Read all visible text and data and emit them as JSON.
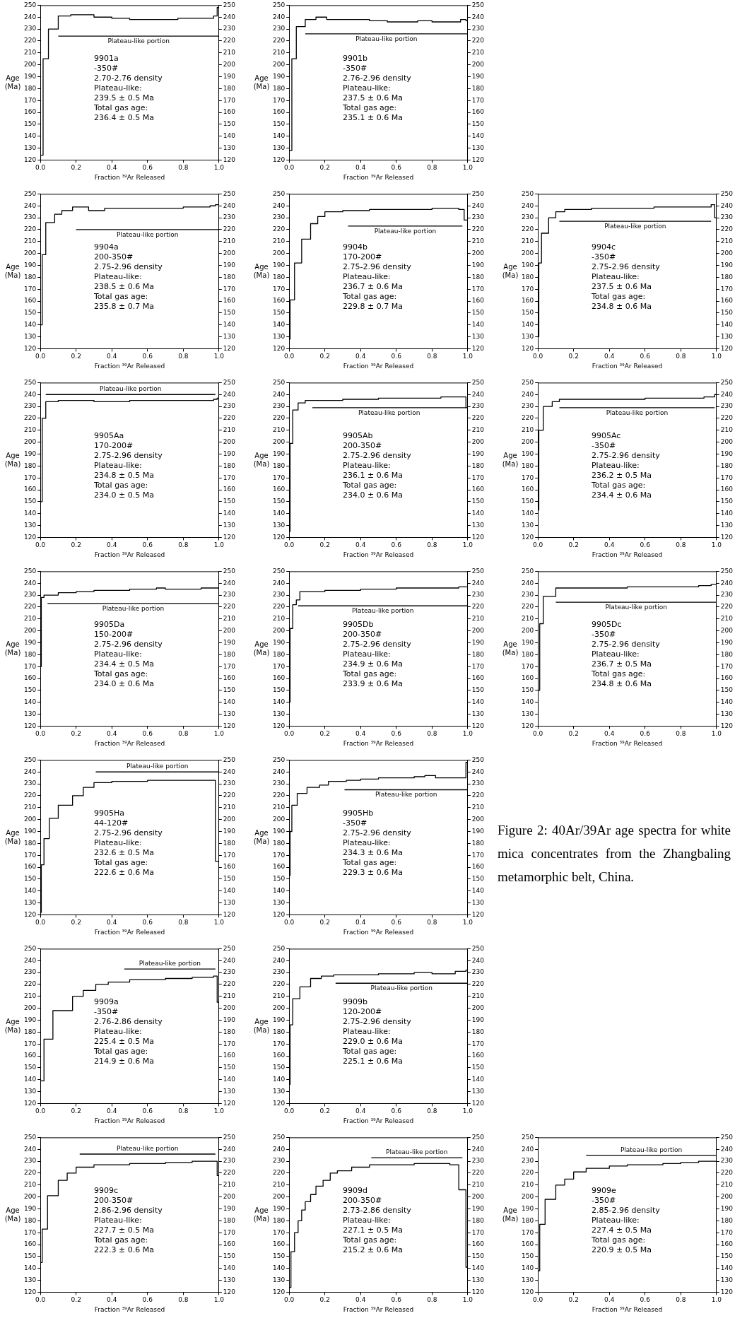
{
  "chart_data": [
    {
      "type": "step",
      "xlabel": "Fraction ³⁹Ar Released",
      "ylabel": "Age (Ma)",
      "xlim": [
        0,
        1
      ],
      "xticks": [
        {
          "value": 0,
          "label": "0.0"
        },
        {
          "value": 0.2,
          "label": "0.2"
        },
        {
          "value": 0.4,
          "label": "0.4"
        },
        {
          "value": 0.6,
          "label": "0.6"
        },
        {
          "value": 0.8,
          "label": "0.8"
        },
        {
          "value": 1,
          "label": "1.0"
        }
      ],
      "ylim": [
        120,
        250
      ],
      "yticks": [
        120,
        130,
        140,
        150,
        160,
        170,
        180,
        190,
        200,
        210,
        220,
        230,
        240,
        250
      ],
      "y2lim": [
        120,
        250
      ],
      "y2ticks": [
        120,
        130,
        140,
        150,
        160,
        170,
        180,
        190,
        200,
        210,
        220,
        230,
        240,
        250
      ],
      "marker": "none",
      "annotations": [
        "9901a",
        "-350#",
        "2.70-2.76 density",
        "Plateau-like:",
        "239.5 ± 0.5 Ma",
        "Total gas age:",
        "236.4 ± 0.5 Ma"
      ],
      "series": [
        {
          "type": "step",
          "color": "#000000",
          "x": [
            0,
            0.015,
            0.045,
            0.1,
            0.17,
            0.3,
            0.4,
            0.5,
            0.77,
            0.97,
            0.99,
            1.0
          ],
          "values": [
            124,
            205,
            230,
            241,
            242,
            240,
            239,
            238,
            239,
            241,
            248,
            248
          ]
        },
        {
          "type": "line",
          "name": "Plateau-like portion",
          "color": "#000000",
          "x": [
            0.1,
            1.0
          ],
          "values": [
            224,
            224
          ]
        }
      ]
    },
    {
      "type": "step",
      "xlabel": "Fraction ³⁹Ar Released",
      "ylabel": "Age (Ma)",
      "xlim": [
        0,
        1
      ],
      "xticks": [
        {
          "value": 0,
          "label": "0.0"
        },
        {
          "value": 0.2,
          "label": "0.2"
        },
        {
          "value": 0.4,
          "label": "0.4"
        },
        {
          "value": 0.6,
          "label": "0.6"
        },
        {
          "value": 0.8,
          "label": "0.8"
        },
        {
          "value": 1,
          "label": "1.0"
        }
      ],
      "ylim": [
        120,
        250
      ],
      "yticks": [
        120,
        130,
        140,
        150,
        160,
        170,
        180,
        190,
        200,
        210,
        220,
        230,
        240,
        250
      ],
      "y2lim": [
        120,
        250
      ],
      "y2ticks": [
        120,
        130,
        140,
        150,
        160,
        170,
        180,
        190,
        200,
        210,
        220,
        230,
        240,
        250
      ],
      "marker": "none",
      "annotations": [
        "9901b",
        "-350#",
        "2.76-2.96 density",
        "Plateau-like:",
        "237.5 ± 0.6 Ma",
        "Total gas age:",
        "235.1 ± 0.6 Ma"
      ],
      "series": [
        {
          "type": "step",
          "color": "#000000",
          "x": [
            0,
            0.015,
            0.04,
            0.09,
            0.15,
            0.21,
            0.45,
            0.55,
            0.72,
            0.8,
            0.96,
            0.99,
            1.0
          ],
          "values": [
            128,
            205,
            232,
            238,
            240,
            238,
            237,
            236,
            237,
            236,
            238,
            237,
            237
          ]
        },
        {
          "type": "line",
          "name": "Plateau-like portion",
          "color": "#000000",
          "x": [
            0.09,
            1.0
          ],
          "values": [
            226,
            226
          ]
        }
      ]
    },
    {
      "type": "step",
      "xlabel": "Fraction ³⁹Ar Released",
      "ylabel": "Age (Ma)",
      "xlim": [
        0,
        1
      ],
      "xticks": [
        {
          "value": 0,
          "label": "0.0"
        },
        {
          "value": 0.2,
          "label": "0.2"
        },
        {
          "value": 0.4,
          "label": "0.4"
        },
        {
          "value": 0.6,
          "label": "0.6"
        },
        {
          "value": 0.8,
          "label": "0.8"
        },
        {
          "value": 1,
          "label": "1.0"
        }
      ],
      "ylim": [
        120,
        250
      ],
      "yticks": [
        120,
        130,
        140,
        150,
        160,
        170,
        180,
        190,
        200,
        210,
        220,
        230,
        240,
        250
      ],
      "y2lim": [
        120,
        250
      ],
      "y2ticks": [
        120,
        130,
        140,
        150,
        160,
        170,
        180,
        190,
        200,
        210,
        220,
        230,
        240,
        250
      ],
      "marker": "none",
      "annotations": [
        "9904a",
        "200-350#",
        "2.75-2.96 density",
        "Plateau-like:",
        "238.5 ± 0.6 Ma",
        "Total gas age:",
        "235.8 ± 0.7 Ma"
      ],
      "series": [
        {
          "type": "step",
          "color": "#000000",
          "x": [
            0,
            0.01,
            0.03,
            0.08,
            0.12,
            0.18,
            0.27,
            0.36,
            0.6,
            0.8,
            0.95,
            0.98,
            1.0
          ],
          "values": [
            140,
            199,
            226,
            233,
            236,
            239,
            236,
            238,
            238,
            239,
            240,
            241,
            241
          ]
        },
        {
          "type": "line",
          "name": "Plateau-like portion",
          "color": "#000000",
          "x": [
            0.2,
            1.0
          ],
          "values": [
            220,
            220
          ]
        }
      ]
    },
    {
      "type": "step",
      "xlabel": "Fraction ³⁹Ar Released",
      "ylabel": "Age (Ma)",
      "xlim": [
        0,
        1
      ],
      "xticks": [
        {
          "value": 0,
          "label": "0.0"
        },
        {
          "value": 0.2,
          "label": "0.2"
        },
        {
          "value": 0.4,
          "label": "0.4"
        },
        {
          "value": 0.6,
          "label": "0.6"
        },
        {
          "value": 0.8,
          "label": "0.8"
        },
        {
          "value": 1,
          "label": "1.0"
        }
      ],
      "ylim": [
        120,
        250
      ],
      "yticks": [
        120,
        130,
        140,
        150,
        160,
        170,
        180,
        190,
        200,
        210,
        220,
        230,
        240,
        250
      ],
      "y2lim": [
        120,
        250
      ],
      "y2ticks": [
        120,
        130,
        140,
        150,
        160,
        170,
        180,
        190,
        200,
        210,
        220,
        230,
        240,
        250
      ],
      "marker": "none",
      "annotations": [
        "9904b",
        "170-200#",
        "2.75-2.96 density",
        "Plateau-like:",
        "236.7 ± 0.6 Ma",
        "Total gas age:",
        "229.8 ± 0.7 Ma"
      ],
      "series": [
        {
          "type": "step",
          "color": "#000000",
          "x": [
            0,
            0.005,
            0.03,
            0.07,
            0.12,
            0.16,
            0.2,
            0.3,
            0.45,
            0.6,
            0.8,
            0.95,
            0.98,
            1.0
          ],
          "values": [
            128,
            161,
            192,
            212,
            225,
            231,
            235,
            236,
            237,
            237,
            238,
            237,
            228,
            228
          ]
        },
        {
          "type": "line",
          "name": "Plateau-like portion",
          "color": "#000000",
          "x": [
            0.33,
            0.97
          ],
          "values": [
            223,
            223
          ]
        }
      ]
    },
    {
      "type": "step",
      "xlabel": "Fraction ³⁹Ar Released",
      "ylabel": "Age (Ma)",
      "xlim": [
        0,
        1
      ],
      "xticks": [
        {
          "value": 0,
          "label": "0.0"
        },
        {
          "value": 0.2,
          "label": "0.2"
        },
        {
          "value": 0.4,
          "label": "0.4"
        },
        {
          "value": 0.6,
          "label": "0.6"
        },
        {
          "value": 0.8,
          "label": "0.8"
        },
        {
          "value": 1,
          "label": "1.0"
        }
      ],
      "ylim": [
        120,
        250
      ],
      "yticks": [
        120,
        130,
        140,
        150,
        160,
        170,
        180,
        190,
        200,
        210,
        220,
        230,
        240,
        250
      ],
      "y2lim": [
        120,
        250
      ],
      "y2ticks": [
        120,
        130,
        140,
        150,
        160,
        170,
        180,
        190,
        200,
        210,
        220,
        230,
        240,
        250
      ],
      "marker": "none",
      "annotations": [
        "9904c",
        "-350#",
        "2.75-2.96 density",
        "Plateau-like:",
        "237.5 ± 0.6 Ma",
        "Total gas age:",
        "234.8 ± 0.6 Ma"
      ],
      "series": [
        {
          "type": "step",
          "color": "#000000",
          "x": [
            0,
            0.005,
            0.02,
            0.06,
            0.1,
            0.15,
            0.3,
            0.5,
            0.65,
            0.8,
            0.97,
            0.99,
            1.0
          ],
          "values": [
            130,
            192,
            217,
            230,
            235,
            237,
            238,
            238,
            239,
            239,
            241,
            230,
            230
          ]
        },
        {
          "type": "line",
          "name": "Plateau-like portion",
          "color": "#000000",
          "x": [
            0.12,
            0.97
          ],
          "values": [
            227,
            227
          ]
        }
      ]
    },
    {
      "type": "step",
      "xlabel": "Fraction ³⁹Ar Released",
      "ylabel": "Age (Ma)",
      "xlim": [
        0,
        1
      ],
      "xticks": [
        {
          "value": 0,
          "label": "0.0"
        },
        {
          "value": 0.2,
          "label": "0.2"
        },
        {
          "value": 0.4,
          "label": "0.4"
        },
        {
          "value": 0.6,
          "label": "0.6"
        },
        {
          "value": 0.8,
          "label": "0.8"
        },
        {
          "value": 1,
          "label": "1.0"
        }
      ],
      "ylim": [
        120,
        250
      ],
      "yticks": [
        120,
        130,
        140,
        150,
        160,
        170,
        180,
        190,
        200,
        210,
        220,
        230,
        240,
        250
      ],
      "y2lim": [
        120,
        250
      ],
      "y2ticks": [
        120,
        130,
        140,
        150,
        160,
        170,
        180,
        190,
        200,
        210,
        220,
        230,
        240,
        250
      ],
      "marker": "none",
      "annotations": [
        "9905Aa",
        "170-200#",
        "2.75-2.96 density",
        "Plateau-like:",
        "234.8 ± 0.5 Ma",
        "Total gas age:",
        "234.0 ± 0.5 Ma"
      ],
      "series": [
        {
          "type": "step",
          "color": "#000000",
          "x": [
            0,
            0.01,
            0.03,
            0.1,
            0.3,
            0.5,
            0.9,
            0.97,
            0.99,
            1.0
          ],
          "values": [
            150,
            220,
            234,
            235,
            234,
            235,
            235,
            236,
            237,
            237
          ]
        },
        {
          "type": "line",
          "name": "Plateau-like portion",
          "color": "#000000",
          "x": [
            0.03,
            0.98
          ],
          "values": [
            240,
            240
          ]
        }
      ]
    },
    {
      "type": "step",
      "xlabel": "Fraction ³⁹Ar Released",
      "ylabel": "Age (Ma)",
      "xlim": [
        0,
        1
      ],
      "xticks": [
        {
          "value": 0,
          "label": "0.0"
        },
        {
          "value": 0.2,
          "label": "0.2"
        },
        {
          "value": 0.4,
          "label": "0.4"
        },
        {
          "value": 0.6,
          "label": "0.6"
        },
        {
          "value": 0.8,
          "label": "0.8"
        },
        {
          "value": 1,
          "label": "1.0"
        }
      ],
      "ylim": [
        120,
        250
      ],
      "yticks": [
        120,
        130,
        140,
        150,
        160,
        170,
        180,
        190,
        200,
        210,
        220,
        230,
        240,
        250
      ],
      "y2lim": [
        120,
        250
      ],
      "y2ticks": [
        120,
        130,
        140,
        150,
        160,
        170,
        180,
        190,
        200,
        210,
        220,
        230,
        240,
        250
      ],
      "marker": "none",
      "annotations": [
        "9905Ab",
        "200-350#",
        "2.75-2.96 density",
        "Plateau-like:",
        "236.1 ± 0.6 Ma",
        "Total gas age:",
        "234.0 ± 0.6 Ma"
      ],
      "series": [
        {
          "type": "step",
          "color": "#000000",
          "x": [
            0,
            0.005,
            0.02,
            0.05,
            0.09,
            0.14,
            0.3,
            0.5,
            0.7,
            0.85,
            0.99,
            1.0
          ],
          "values": [
            125,
            199,
            227,
            233,
            235,
            235,
            236,
            237,
            237,
            238,
            229,
            229
          ]
        },
        {
          "type": "line",
          "name": "Plateau-like portion",
          "color": "#000000",
          "x": [
            0.13,
            0.99
          ],
          "values": [
            229,
            229
          ]
        }
      ]
    },
    {
      "type": "step",
      "xlabel": "Fraction ³⁹Ar Released",
      "ylabel": "Age (Ma)",
      "xlim": [
        0,
        1
      ],
      "xticks": [
        {
          "value": 0,
          "label": "0.0"
        },
        {
          "value": 0.2,
          "label": "0.2"
        },
        {
          "value": 0.4,
          "label": "0.4"
        },
        {
          "value": 0.6,
          "label": "0.6"
        },
        {
          "value": 0.8,
          "label": "0.8"
        },
        {
          "value": 1,
          "label": "1.0"
        }
      ],
      "ylim": [
        120,
        250
      ],
      "yticks": [
        120,
        130,
        140,
        150,
        160,
        170,
        180,
        190,
        200,
        210,
        220,
        230,
        240,
        250
      ],
      "y2lim": [
        120,
        250
      ],
      "y2ticks": [
        120,
        130,
        140,
        150,
        160,
        170,
        180,
        190,
        200,
        210,
        220,
        230,
        240,
        250
      ],
      "marker": "none",
      "annotations": [
        "9905Ac",
        "-350#",
        "2.75-2.96 density",
        "Plateau-like:",
        "236.2 ± 0.5 Ma",
        "Total gas age:",
        "234.4 ± 0.6 Ma"
      ],
      "series": [
        {
          "type": "step",
          "color": "#000000",
          "x": [
            0,
            0.005,
            0.03,
            0.08,
            0.12,
            0.2,
            0.4,
            0.6,
            0.8,
            0.93,
            0.99,
            1.0
          ],
          "values": [
            143,
            210,
            230,
            234,
            236,
            236,
            236,
            237,
            237,
            238,
            240,
            240
          ]
        },
        {
          "type": "line",
          "name": "Plateau-like portion",
          "color": "#000000",
          "x": [
            0.12,
            0.99
          ],
          "values": [
            229,
            229
          ]
        }
      ]
    },
    {
      "type": "step",
      "xlabel": "Fraction ³⁹Ar Released",
      "ylabel": "Age (Ma)",
      "xlim": [
        0,
        1
      ],
      "xticks": [
        {
          "value": 0,
          "label": "0.0"
        },
        {
          "value": 0.2,
          "label": "0.2"
        },
        {
          "value": 0.4,
          "label": "0.4"
        },
        {
          "value": 0.6,
          "label": "0.6"
        },
        {
          "value": 0.8,
          "label": "0.8"
        },
        {
          "value": 1,
          "label": "1.0"
        }
      ],
      "ylim": [
        120,
        250
      ],
      "yticks": [
        120,
        130,
        140,
        150,
        160,
        170,
        180,
        190,
        200,
        210,
        220,
        230,
        240,
        250
      ],
      "y2lim": [
        120,
        250
      ],
      "y2ticks": [
        120,
        130,
        140,
        150,
        160,
        170,
        180,
        190,
        200,
        210,
        220,
        230,
        240,
        250
      ],
      "marker": "none",
      "annotations": [
        "9905Da",
        "150-200#",
        "2.75-2.96 density",
        "Plateau-like:",
        "234.4 ± 0.5 Ma",
        "Total gas age:",
        "234.0 ± 0.6 Ma"
      ],
      "series": [
        {
          "type": "step",
          "color": "#000000",
          "x": [
            0,
            0.005,
            0.02,
            0.1,
            0.2,
            0.3,
            0.5,
            0.65,
            0.7,
            0.9,
            1.0
          ],
          "values": [
            170,
            228,
            230,
            232,
            233,
            234,
            235,
            236,
            235,
            236,
            236
          ]
        },
        {
          "type": "line",
          "name": "Plateau-like portion",
          "color": "#000000",
          "x": [
            0.04,
            1.0
          ],
          "values": [
            223,
            223
          ]
        }
      ]
    },
    {
      "type": "step",
      "xlabel": "Fraction ³⁹Ar Released",
      "ylabel": "Age (Ma)",
      "xlim": [
        0,
        1
      ],
      "xticks": [
        {
          "value": 0,
          "label": "0.0"
        },
        {
          "value": 0.2,
          "label": "0.2"
        },
        {
          "value": 0.4,
          "label": "0.4"
        },
        {
          "value": 0.6,
          "label": "0.6"
        },
        {
          "value": 0.8,
          "label": "0.8"
        },
        {
          "value": 1,
          "label": "1.0"
        }
      ],
      "ylim": [
        120,
        250
      ],
      "yticks": [
        120,
        130,
        140,
        150,
        160,
        170,
        180,
        190,
        200,
        210,
        220,
        230,
        240,
        250
      ],
      "y2lim": [
        120,
        250
      ],
      "y2ticks": [
        120,
        130,
        140,
        150,
        160,
        170,
        180,
        190,
        200,
        210,
        220,
        230,
        240,
        250
      ],
      "marker": "none",
      "annotations": [
        "9905Db",
        "200-350#",
        "2.75-2.96 density",
        "Plateau-like:",
        "234.9 ± 0.6 Ma",
        "Total gas age:",
        "233.9 ± 0.6 Ma"
      ],
      "series": [
        {
          "type": "step",
          "color": "#000000",
          "x": [
            0,
            0.005,
            0.02,
            0.04,
            0.06,
            0.2,
            0.4,
            0.6,
            0.8,
            0.95,
            1.0
          ],
          "values": [
            140,
            202,
            222,
            226,
            233,
            234,
            235,
            236,
            236,
            237,
            237
          ]
        },
        {
          "type": "line",
          "name": "Plateau-like portion",
          "color": "#000000",
          "x": [
            0.05,
            1.0
          ],
          "values": [
            221,
            221
          ]
        }
      ]
    },
    {
      "type": "step",
      "xlabel": "Fraction ³⁹Ar Released",
      "ylabel": "Age (Ma)",
      "xlim": [
        0,
        1
      ],
      "xticks": [
        {
          "value": 0,
          "label": "0.0"
        },
        {
          "value": 0.2,
          "label": "0.2"
        },
        {
          "value": 0.4,
          "label": "0.4"
        },
        {
          "value": 0.6,
          "label": "0.6"
        },
        {
          "value": 0.8,
          "label": "0.8"
        },
        {
          "value": 1,
          "label": "1.0"
        }
      ],
      "ylim": [
        120,
        250
      ],
      "yticks": [
        120,
        130,
        140,
        150,
        160,
        170,
        180,
        190,
        200,
        210,
        220,
        230,
        240,
        250
      ],
      "y2lim": [
        120,
        250
      ],
      "y2ticks": [
        120,
        130,
        140,
        150,
        160,
        170,
        180,
        190,
        200,
        210,
        220,
        230,
        240,
        250
      ],
      "marker": "none",
      "annotations": [
        "9905Dc",
        "-350#",
        "2.75-2.96 density",
        "Plateau-like:",
        "236.7 ± 0.5 Ma",
        "Total gas age:",
        "234.8 ± 0.6 Ma"
      ],
      "series": [
        {
          "type": "step",
          "color": "#000000",
          "x": [
            0,
            0.01,
            0.03,
            0.1,
            0.3,
            0.5,
            0.7,
            0.9,
            0.97,
            1.0
          ],
          "values": [
            150,
            206,
            229,
            236,
            236,
            237,
            237,
            238,
            239,
            239
          ]
        },
        {
          "type": "line",
          "name": "Plateau-like portion",
          "color": "#000000",
          "x": [
            0.1,
            1.0
          ],
          "values": [
            224,
            224
          ]
        }
      ]
    },
    {
      "type": "step",
      "xlabel": "Fraction ³⁹Ar Released",
      "ylabel": "Age (Ma)",
      "xlim": [
        0,
        1
      ],
      "xticks": [
        {
          "value": 0,
          "label": "0.0"
        },
        {
          "value": 0.2,
          "label": "0.2"
        },
        {
          "value": 0.4,
          "label": "0.4"
        },
        {
          "value": 0.6,
          "label": "0.6"
        },
        {
          "value": 0.8,
          "label": "0.8"
        },
        {
          "value": 1,
          "label": "1.0"
        }
      ],
      "ylim": [
        120,
        250
      ],
      "yticks": [
        120,
        130,
        140,
        150,
        160,
        170,
        180,
        190,
        200,
        210,
        220,
        230,
        240,
        250
      ],
      "y2lim": [
        120,
        250
      ],
      "y2ticks": [
        120,
        130,
        140,
        150,
        160,
        170,
        180,
        190,
        200,
        210,
        220,
        230,
        240,
        250
      ],
      "marker": "none",
      "annotations": [
        "9905Ha",
        "44-120#",
        "2.75-2.96 density",
        "Plateau-like:",
        "232.6 ± 0.5 Ma",
        "Total gas age:",
        "222.6 ± 0.6 Ma"
      ],
      "series": [
        {
          "type": "step",
          "color": "#000000",
          "x": [
            0,
            0.005,
            0.02,
            0.05,
            0.1,
            0.12,
            0.18,
            0.24,
            0.3,
            0.4,
            0.6,
            0.8,
            0.9,
            0.98,
            1.0
          ],
          "values": [
            122,
            162,
            184,
            201,
            212,
            212,
            220,
            227,
            231,
            232,
            233,
            233,
            233,
            165,
            165
          ]
        },
        {
          "type": "line",
          "name": "Plateau-like portion",
          "color": "#000000",
          "x": [
            0.31,
            1.0
          ],
          "values": [
            240,
            240
          ]
        }
      ]
    },
    {
      "type": "step",
      "xlabel": "Fraction ³⁹Ar Released",
      "ylabel": "Age (Ma)",
      "xlim": [
        0,
        1
      ],
      "xticks": [
        {
          "value": 0,
          "label": "0.0"
        },
        {
          "value": 0.2,
          "label": "0.2"
        },
        {
          "value": 0.4,
          "label": "0.4"
        },
        {
          "value": 0.6,
          "label": "0.6"
        },
        {
          "value": 0.8,
          "label": "0.8"
        },
        {
          "value": 1,
          "label": "1.0"
        }
      ],
      "ylim": [
        120,
        250
      ],
      "yticks": [
        120,
        130,
        140,
        150,
        160,
        170,
        180,
        190,
        200,
        210,
        220,
        230,
        240,
        250
      ],
      "y2lim": [
        120,
        250
      ],
      "y2ticks": [
        120,
        130,
        140,
        150,
        160,
        170,
        180,
        190,
        200,
        210,
        220,
        230,
        240,
        250
      ],
      "marker": "none",
      "annotations": [
        "9905Hb",
        "-350#",
        "2.75-2.96 density",
        "Plateau-like:",
        "234.3 ± 0.6 Ma",
        "Total gas age:",
        "229.3 ± 0.6 Ma"
      ],
      "series": [
        {
          "type": "step",
          "color": "#000000",
          "x": [
            0,
            0.005,
            0.015,
            0.045,
            0.1,
            0.17,
            0.22,
            0.32,
            0.4,
            0.5,
            0.7,
            0.76,
            0.82,
            0.95,
            0.99,
            1.0
          ],
          "values": [
            153,
            190,
            212,
            222,
            227,
            229,
            232,
            233,
            234,
            235,
            236,
            237,
            235,
            235,
            248,
            248
          ]
        },
        {
          "type": "line",
          "name": "Plateau-like portion",
          "color": "#000000",
          "x": [
            0.31,
            1.0
          ],
          "values": [
            225,
            225
          ]
        }
      ]
    },
    {
      "type": "other",
      "annotations": [
        "Figure 2: 40Ar/39Ar age spectra for white mica concentrates from the Zhangbaling metamorphic belt, China."
      ]
    },
    {
      "type": "step",
      "xlabel": "Fraction ³⁹Ar Released",
      "ylabel": "Age (Ma)",
      "xlim": [
        0,
        1
      ],
      "xticks": [
        {
          "value": 0,
          "label": "0.0"
        },
        {
          "value": 0.2,
          "label": "0.2"
        },
        {
          "value": 0.4,
          "label": "0.4"
        },
        {
          "value": 0.6,
          "label": "0.6"
        },
        {
          "value": 0.8,
          "label": "0.8"
        },
        {
          "value": 1,
          "label": "1.0"
        }
      ],
      "ylim": [
        120,
        250
      ],
      "yticks": [
        120,
        130,
        140,
        150,
        160,
        170,
        180,
        190,
        200,
        210,
        220,
        230,
        240,
        250
      ],
      "y2lim": [
        120,
        250
      ],
      "y2ticks": [
        120,
        130,
        140,
        150,
        160,
        170,
        180,
        190,
        200,
        210,
        220,
        230,
        240,
        250
      ],
      "marker": "none",
      "annotations": [
        "9909a",
        "-350#",
        "2.76-2.86 density",
        "Plateau-like:",
        "225.4 ± 0.5 Ma",
        "Total gas age:",
        "214.9 ± 0.6 Ma"
      ],
      "series": [
        {
          "type": "step",
          "color": "#000000",
          "x": [
            0,
            0.02,
            0.07,
            0.18,
            0.24,
            0.31,
            0.38,
            0.5,
            0.7,
            0.85,
            0.97,
            0.99,
            1.0
          ],
          "values": [
            139,
            174,
            198,
            210,
            215,
            220,
            222,
            224,
            225,
            226,
            227,
            205,
            205
          ]
        },
        {
          "type": "line",
          "name": "Plateau-like portion",
          "color": "#000000",
          "x": [
            0.47,
            0.98
          ],
          "values": [
            233,
            233
          ]
        }
      ]
    },
    {
      "type": "step",
      "xlabel": "Fraction ³⁹Ar Released",
      "ylabel": "Age (Ma)",
      "xlim": [
        0,
        1
      ],
      "xticks": [
        {
          "value": 0,
          "label": "0.0"
        },
        {
          "value": 0.2,
          "label": "0.2"
        },
        {
          "value": 0.4,
          "label": "0.4"
        },
        {
          "value": 0.6,
          "label": "0.6"
        },
        {
          "value": 0.8,
          "label": "0.8"
        },
        {
          "value": 1,
          "label": "1.0"
        }
      ],
      "ylim": [
        120,
        250
      ],
      "yticks": [
        120,
        130,
        140,
        150,
        160,
        170,
        180,
        190,
        200,
        210,
        220,
        230,
        240,
        250
      ],
      "y2lim": [
        120,
        250
      ],
      "y2ticks": [
        120,
        130,
        140,
        150,
        160,
        170,
        180,
        190,
        200,
        210,
        220,
        230,
        240,
        250
      ],
      "marker": "none",
      "annotations": [
        "9909b",
        "120-200#",
        "2.75-2.96 density",
        "Plateau-like:",
        "229.0 ± 0.6 Ma",
        "Total gas age:",
        "225.1 ± 0.6 Ma"
      ],
      "series": [
        {
          "type": "step",
          "color": "#000000",
          "x": [
            0,
            0.005,
            0.02,
            0.06,
            0.12,
            0.18,
            0.25,
            0.5,
            0.7,
            0.8,
            0.93,
            0.99,
            1.0
          ],
          "values": [
            136,
            186,
            208,
            218,
            225,
            227,
            228,
            229,
            230,
            229,
            231,
            232,
            232
          ]
        },
        {
          "type": "line",
          "name": "Plateau-like portion",
          "color": "#000000",
          "x": [
            0.26,
            1.0
          ],
          "values": [
            221,
            221
          ]
        }
      ]
    },
    {
      "type": "step",
      "xlabel": "Fraction ³⁹Ar Released",
      "ylabel": "Age (Ma)",
      "xlim": [
        0,
        1
      ],
      "xticks": [
        {
          "value": 0,
          "label": "0.0"
        },
        {
          "value": 0.2,
          "label": "0.2"
        },
        {
          "value": 0.4,
          "label": "0.4"
        },
        {
          "value": 0.6,
          "label": "0.6"
        },
        {
          "value": 0.8,
          "label": "0.8"
        },
        {
          "value": 1,
          "label": "1.0"
        }
      ],
      "ylim": [
        120,
        250
      ],
      "yticks": [
        120,
        130,
        140,
        150,
        160,
        170,
        180,
        190,
        200,
        210,
        220,
        230,
        240,
        250
      ],
      "y2lim": [
        120,
        250
      ],
      "y2ticks": [
        120,
        130,
        140,
        150,
        160,
        170,
        180,
        190,
        200,
        210,
        220,
        230,
        240,
        250
      ],
      "marker": "none",
      "annotations": [
        "9909c",
        "200-350#",
        "2.86-2.96 density",
        "Plateau-like:",
        "227.7 ± 0.5 Ma",
        "Total gas age:",
        "222.3 ± 0.6 Ma"
      ],
      "series": [
        {
          "type": "step",
          "color": "#000000",
          "x": [
            0,
            0.01,
            0.04,
            0.1,
            0.15,
            0.2,
            0.3,
            0.5,
            0.7,
            0.85,
            0.97,
            0.99,
            1.0
          ],
          "values": [
            145,
            173,
            201,
            214,
            220,
            225,
            227,
            228,
            229,
            230,
            230,
            218,
            218
          ]
        },
        {
          "type": "line",
          "name": "Plateau-like portion",
          "color": "#000000",
          "x": [
            0.22,
            0.98
          ],
          "values": [
            236,
            236
          ]
        }
      ]
    },
    {
      "type": "step",
      "xlabel": "Fraction ³⁹Ar Released",
      "ylabel": "Age (Ma)",
      "xlim": [
        0,
        1
      ],
      "xticks": [
        {
          "value": 0,
          "label": "0.0"
        },
        {
          "value": 0.2,
          "label": "0.2"
        },
        {
          "value": 0.4,
          "label": "0.4"
        },
        {
          "value": 0.6,
          "label": "0.6"
        },
        {
          "value": 0.8,
          "label": "0.8"
        },
        {
          "value": 1,
          "label": "1.0"
        }
      ],
      "ylim": [
        120,
        250
      ],
      "yticks": [
        120,
        130,
        140,
        150,
        160,
        170,
        180,
        190,
        200,
        210,
        220,
        230,
        240,
        250
      ],
      "y2lim": [
        120,
        250
      ],
      "y2ticks": [
        120,
        130,
        140,
        150,
        160,
        170,
        180,
        190,
        200,
        210,
        220,
        230,
        240,
        250
      ],
      "marker": "none",
      "annotations": [
        "9909d",
        "200-350#",
        "2.73-2.86 density",
        "Plateau-like:",
        "227.1 ± 0.5 Ma",
        "Total gas age:",
        "215.2 ± 0.6 Ma"
      ],
      "series": [
        {
          "type": "step",
          "color": "#000000",
          "x": [
            0,
            0.01,
            0.03,
            0.05,
            0.07,
            0.09,
            0.12,
            0.15,
            0.19,
            0.23,
            0.27,
            0.35,
            0.45,
            0.6,
            0.7,
            0.9,
            0.95,
            0.99,
            1.0
          ],
          "values": [
            124,
            154,
            170,
            180,
            189,
            196,
            202,
            209,
            214,
            220,
            222,
            225,
            227,
            227,
            228,
            227,
            206,
            141,
            141
          ]
        },
        {
          "type": "line",
          "name": "Plateau-like portion",
          "color": "#000000",
          "x": [
            0.46,
            0.97
          ],
          "values": [
            233,
            233
          ]
        }
      ]
    },
    {
      "type": "step",
      "xlabel": "Fraction ³⁹Ar Released",
      "ylabel": "Age (Ma)",
      "xlim": [
        0,
        1
      ],
      "xticks": [
        {
          "value": 0,
          "label": "0.0"
        },
        {
          "value": 0.2,
          "label": "0.2"
        },
        {
          "value": 0.4,
          "label": "0.4"
        },
        {
          "value": 0.6,
          "label": "0.6"
        },
        {
          "value": 0.8,
          "label": "0.8"
        },
        {
          "value": 1,
          "label": "1.0"
        }
      ],
      "ylim": [
        120,
        250
      ],
      "yticks": [
        120,
        130,
        140,
        150,
        160,
        170,
        180,
        190,
        200,
        210,
        220,
        230,
        240,
        250
      ],
      "y2lim": [
        120,
        250
      ],
      "y2ticks": [
        120,
        130,
        140,
        150,
        160,
        170,
        180,
        190,
        200,
        210,
        220,
        230,
        240,
        250
      ],
      "marker": "none",
      "annotations": [
        "9909e",
        "-350#",
        "2.85-2.96 density",
        "Plateau-like:",
        "227.4 ± 0.5 Ma",
        "Total gas age:",
        "220.9 ± 0.5 Ma"
      ],
      "series": [
        {
          "type": "step",
          "color": "#000000",
          "x": [
            0,
            0.01,
            0.04,
            0.1,
            0.15,
            0.2,
            0.27,
            0.4,
            0.5,
            0.7,
            0.8,
            0.9,
            0.99,
            1.0
          ],
          "values": [
            138,
            177,
            198,
            210,
            215,
            221,
            224,
            226,
            227,
            228,
            229,
            230,
            230,
            230
          ]
        },
        {
          "type": "line",
          "name": "Plateau-like portion",
          "color": "#000000",
          "x": [
            0.27,
            1.0
          ],
          "values": [
            235,
            235
          ]
        }
      ]
    }
  ]
}
